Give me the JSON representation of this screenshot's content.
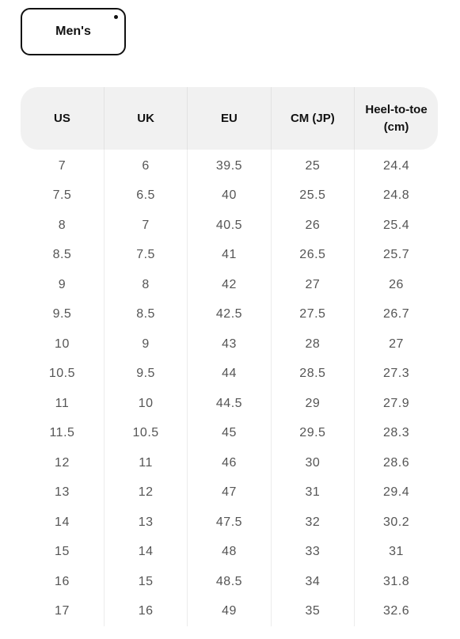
{
  "tab": {
    "label": "Men's"
  },
  "table": {
    "headers": [
      "US",
      "UK",
      "EU",
      "CM (JP)",
      "Heel-to-toe (cm)"
    ],
    "rows": [
      [
        "7",
        "6",
        "39.5",
        "25",
        "24.4"
      ],
      [
        "7.5",
        "6.5",
        "40",
        "25.5",
        "24.8"
      ],
      [
        "8",
        "7",
        "40.5",
        "26",
        "25.4"
      ],
      [
        "8.5",
        "7.5",
        "41",
        "26.5",
        "25.7"
      ],
      [
        "9",
        "8",
        "42",
        "27",
        "26"
      ],
      [
        "9.5",
        "8.5",
        "42.5",
        "27.5",
        "26.7"
      ],
      [
        "10",
        "9",
        "43",
        "28",
        "27"
      ],
      [
        "10.5",
        "9.5",
        "44",
        "28.5",
        "27.3"
      ],
      [
        "11",
        "10",
        "44.5",
        "29",
        "27.9"
      ],
      [
        "11.5",
        "10.5",
        "45",
        "29.5",
        "28.3"
      ],
      [
        "12",
        "11",
        "46",
        "30",
        "28.6"
      ],
      [
        "13",
        "12",
        "47",
        "31",
        "29.4"
      ],
      [
        "14",
        "13",
        "47.5",
        "32",
        "30.2"
      ],
      [
        "15",
        "14",
        "48",
        "33",
        "31"
      ],
      [
        "16",
        "15",
        "48.5",
        "34",
        "31.8"
      ],
      [
        "17",
        "16",
        "49",
        "35",
        "32.6"
      ]
    ]
  },
  "colors": {
    "header_background": "#f1f1f1",
    "header_text": "#111111",
    "cell_text": "#555555",
    "border": "#111111"
  }
}
